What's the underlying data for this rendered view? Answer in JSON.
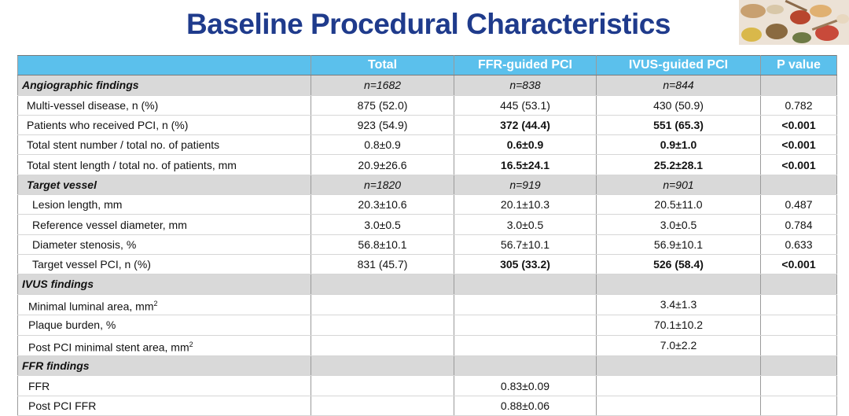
{
  "title": "Baseline Procedural Characteristics",
  "header": {
    "col0": "",
    "total": "Total",
    "ffr": "FFR-guided PCI",
    "ivus": "IVUS-guided PCI",
    "p": "P value"
  },
  "angio": {
    "label": "Angiographic findings",
    "total": "n=1682",
    "ffr": "n=838",
    "ivus": "n=844",
    "rows": [
      {
        "label": "Multi-vessel disease, n (%)",
        "total": "875 (52.0)",
        "ffr": "445 (53.1)",
        "ivus": "430 (50.9)",
        "p": "0.782"
      },
      {
        "label": "Patients who received PCI, n (%)",
        "total": "923 (54.9)",
        "ffr": "372 (44.4)",
        "ivus": "551 (65.3)",
        "p": "<0.001"
      },
      {
        "label": "Total stent number / total no. of patients",
        "total": "0.8±0.9",
        "ffr": "0.6±0.9",
        "ivus": "0.9±1.0",
        "p": "<0.001"
      },
      {
        "label": "Total stent length / total no. of patients, mm",
        "total": "20.9±26.6",
        "ffr": "16.5±24.1",
        "ivus": "25.2±28.1",
        "p": "<0.001"
      }
    ]
  },
  "target": {
    "label": "Target vessel",
    "total": "n=1820",
    "ffr": "n=919",
    "ivus": "n=901",
    "rows": [
      {
        "label": "Lesion length, mm",
        "total": "20.3±10.6",
        "ffr": "20.1±10.3",
        "ivus": "20.5±11.0",
        "p": "0.487"
      },
      {
        "label": "Reference vessel diameter, mm",
        "total": "3.0±0.5",
        "ffr": "3.0±0.5",
        "ivus": "3.0±0.5",
        "p": "0.784"
      },
      {
        "label": "Diameter stenosis, %",
        "total": "56.8±10.1",
        "ffr": "56.7±10.1",
        "ivus": "56.9±10.1",
        "p": "0.633"
      },
      {
        "label": "Target vessel PCI, n (%)",
        "total": "831 (45.7)",
        "ffr": "305 (33.2)",
        "ivus": "526 (58.4)",
        "p": "<0.001"
      }
    ]
  },
  "ivus_findings": {
    "label": "IVUS findings",
    "rows": [
      {
        "label_main": "Minimal luminal area, mm",
        "label_sup": "2",
        "ivus": "3.4±1.3"
      },
      {
        "label_main": "Plaque burden, %",
        "label_sup": "",
        "ivus": "70.1±10.2"
      },
      {
        "label_main": "Post PCI minimal stent area, mm",
        "label_sup": "2",
        "ivus": "7.0±2.2"
      }
    ]
  },
  "ffr_findings": {
    "label": "FFR findings",
    "rows": [
      {
        "label": "FFR",
        "ffr": "0.83±0.09"
      },
      {
        "label": "Post PCI FFR",
        "ffr": "0.88±0.06"
      }
    ]
  },
  "colors": {
    "title": "#1f3b8c",
    "header_bg": "#5bc0ec",
    "section_bg": "#d9d9d9"
  }
}
